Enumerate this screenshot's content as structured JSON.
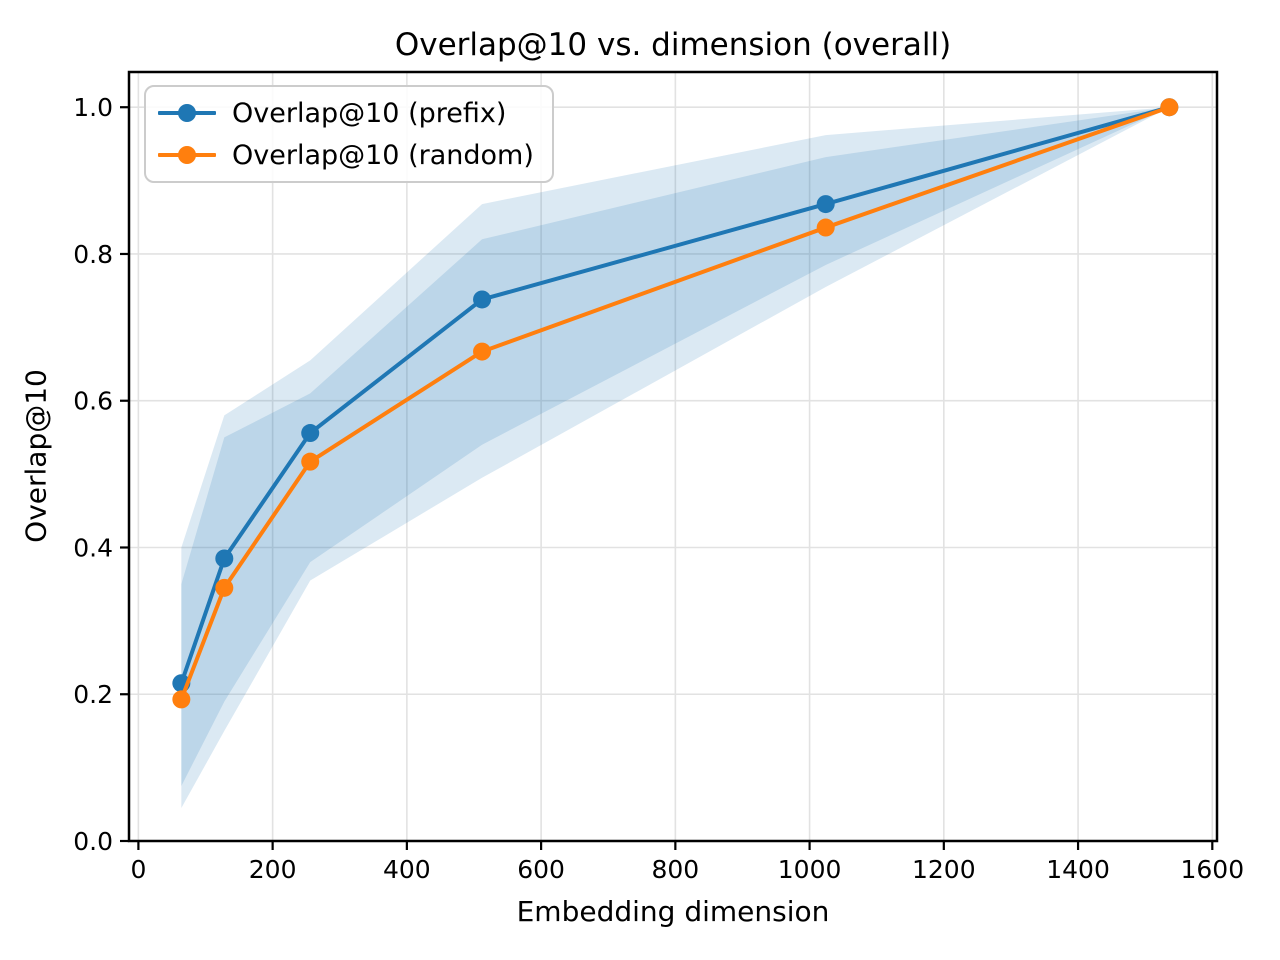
{
  "chart_data": {
    "type": "line",
    "title": "Overlap@10 vs. dimension (overall)",
    "xlabel": "Embedding dimension",
    "ylabel": "Overlap@10",
    "x": [
      64,
      128,
      256,
      512,
      1024,
      1536
    ],
    "series": [
      {
        "name": "Overlap@10 (prefix)",
        "color": "#1f77b4",
        "values": [
          0.215,
          0.385,
          0.556,
          0.738,
          0.868,
          1.0
        ],
        "band_lower": [
          0.075,
          0.19,
          0.38,
          0.54,
          0.785,
          1.0
        ],
        "band_upper": [
          0.4,
          0.58,
          0.655,
          0.868,
          0.962,
          1.0
        ],
        "band_color": "#1f77b4",
        "band_alpha": 0.16
      },
      {
        "name": "Overlap@10 (random)",
        "color": "#ff7f0e",
        "values": [
          0.193,
          0.345,
          0.517,
          0.667,
          0.836,
          1.0
        ],
        "band_lower": [
          0.045,
          0.15,
          0.355,
          0.495,
          0.755,
          1.0
        ],
        "band_upper": [
          0.35,
          0.55,
          0.61,
          0.82,
          0.932,
          1.0
        ],
        "band_color": "#1f77b4",
        "band_alpha": 0.16
      }
    ],
    "x_ticks": [
      0,
      200,
      400,
      600,
      800,
      1000,
      1200,
      1400,
      1600
    ],
    "x_tick_labels": [
      "0",
      "200",
      "400",
      "600",
      "800",
      "1000",
      "1200",
      "1400",
      "1600"
    ],
    "y_ticks": [
      0.0,
      0.2,
      0.4,
      0.6,
      0.8,
      1.0
    ],
    "y_tick_labels": [
      "0.0",
      "0.2",
      "0.4",
      "0.6",
      "0.8",
      "1.0"
    ],
    "xlim": [
      -14,
      1607
    ],
    "ylim": [
      0,
      1.048
    ],
    "grid": true,
    "legend_position": "upper left",
    "colors": {
      "grid": "#e2e2e2",
      "spine": "#000000",
      "tick_label": "#000000",
      "background": "#ffffff"
    }
  }
}
